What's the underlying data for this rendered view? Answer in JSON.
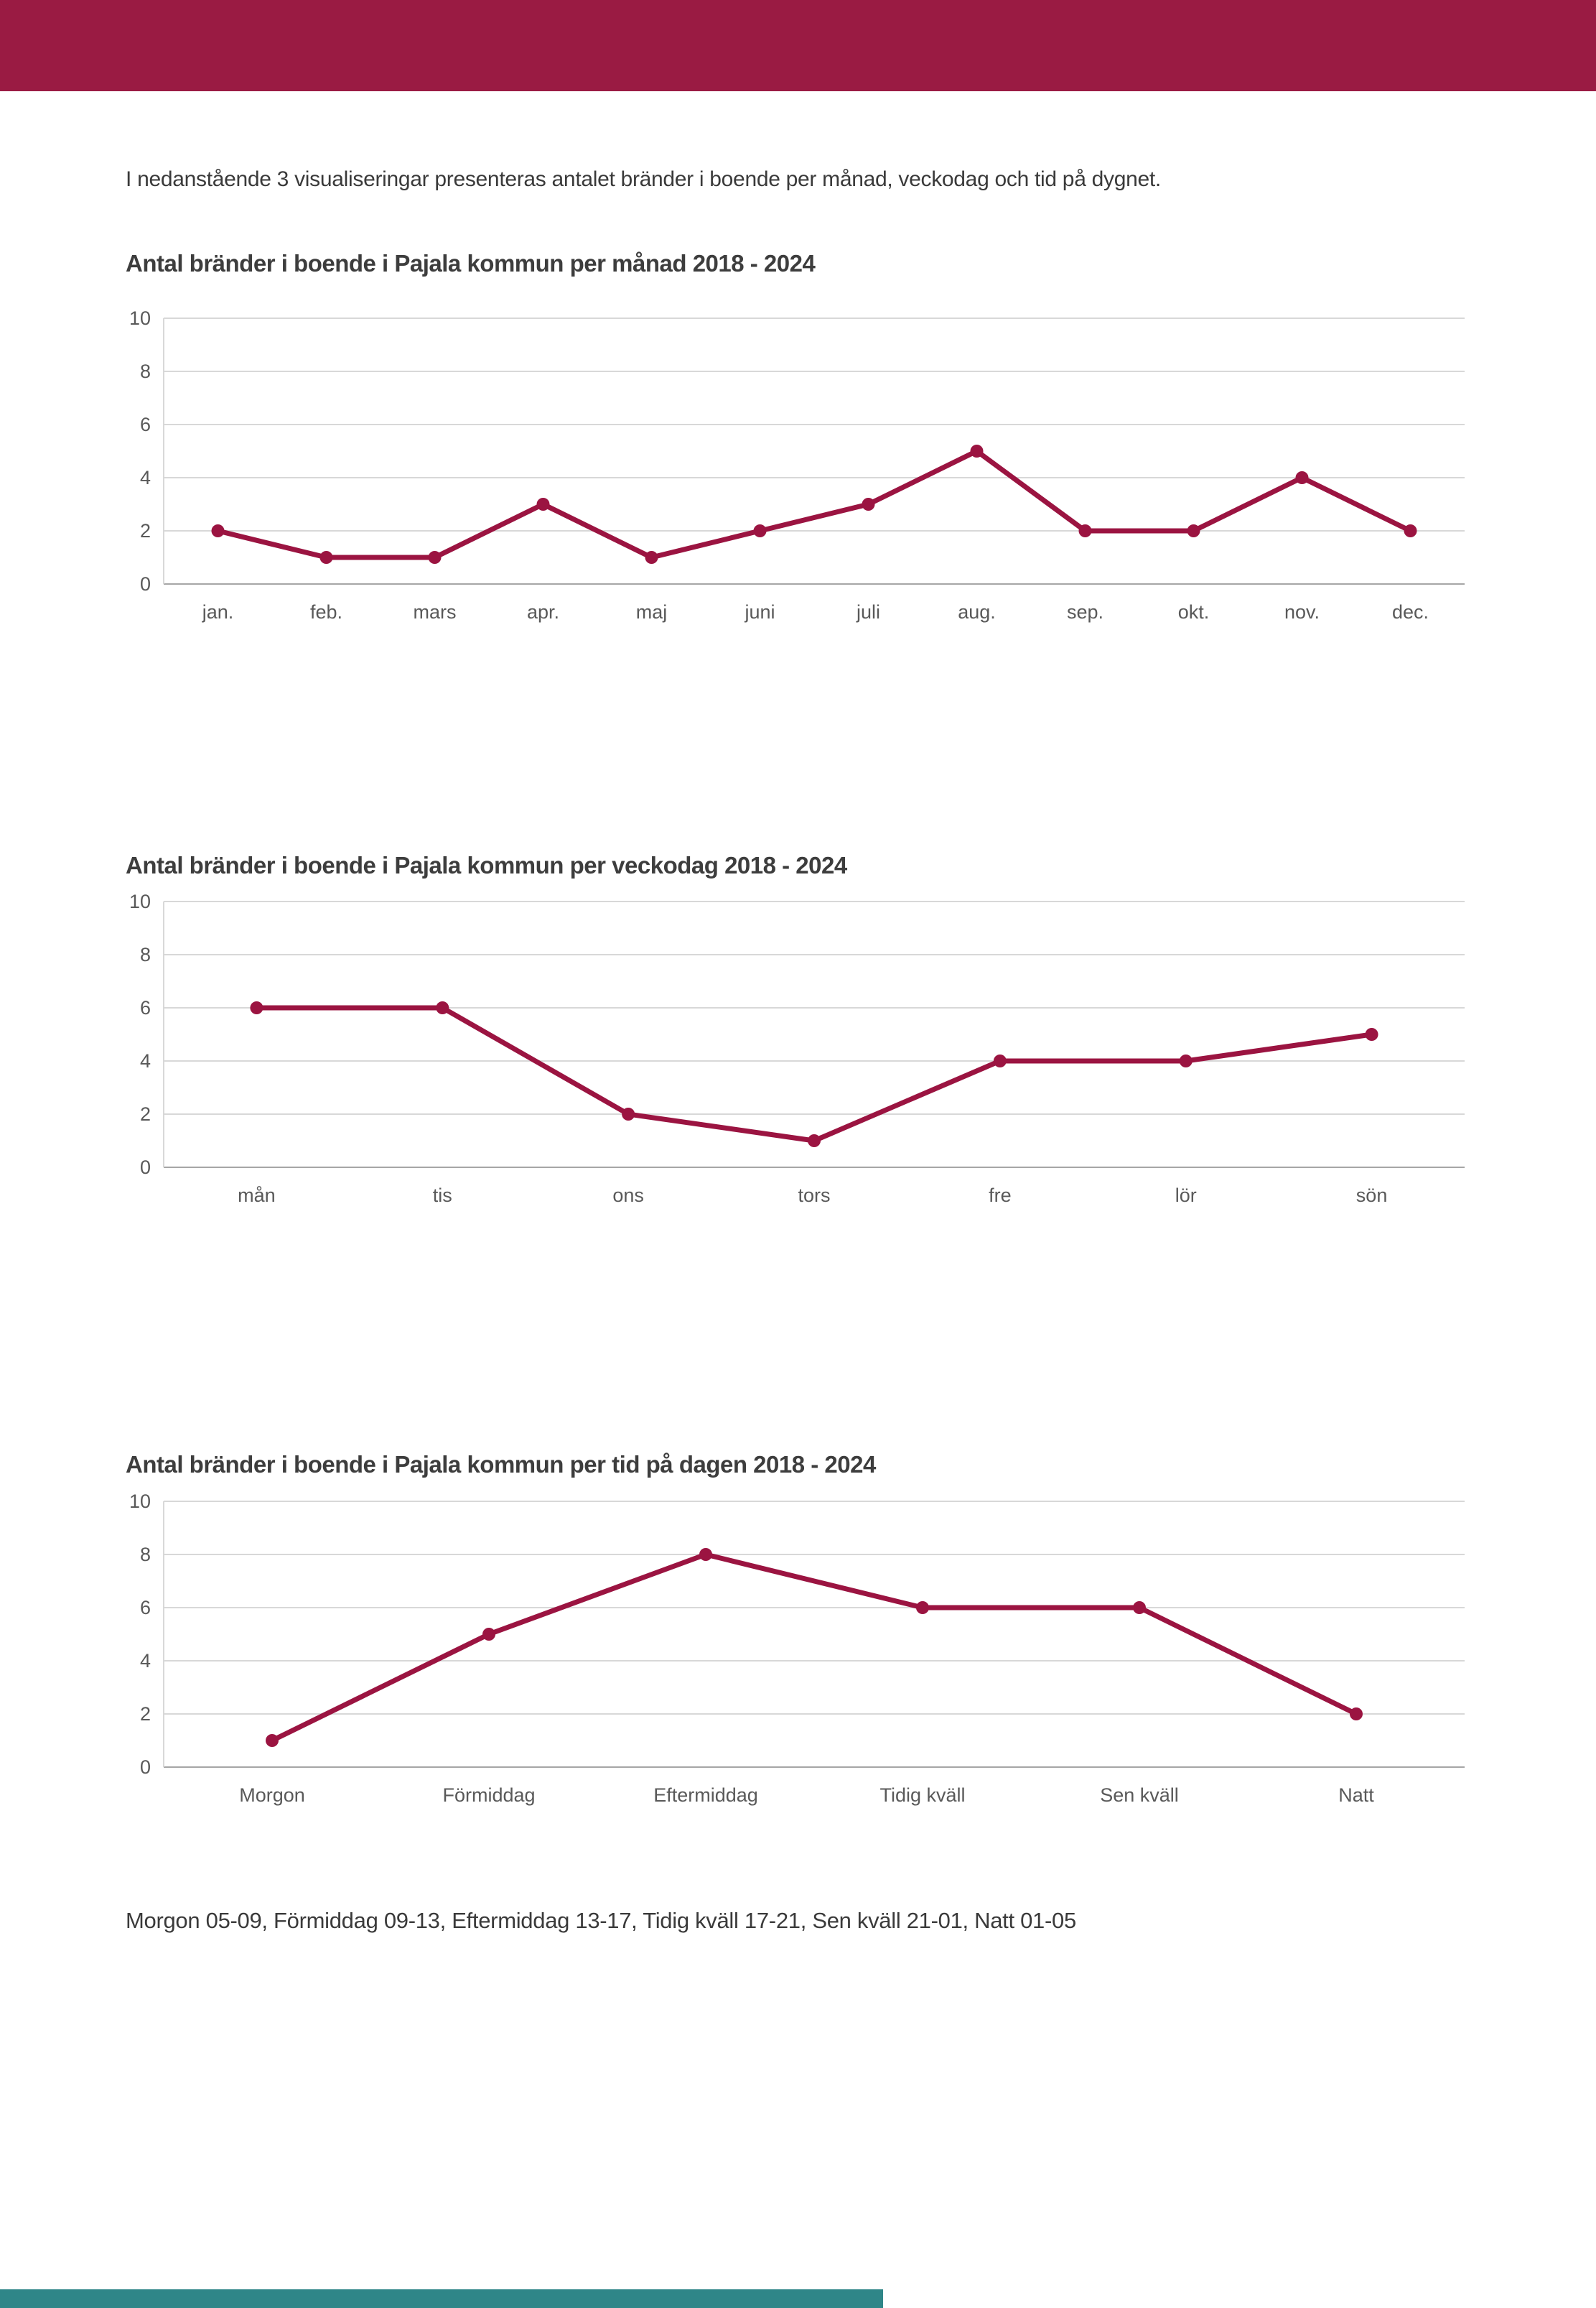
{
  "page": {
    "intro": "I nedanstående 3 visualiseringar presenteras antalet bränder i boende per månad, veckodag och tid på dygnet.",
    "footnote": "Morgon 05-09, Förmiddag 09-13, Eftermiddag 13-17, Tidig kväll 17-21, Sen kväll 21-01, Natt 01-05",
    "accent_color": "#9A1B43",
    "bottom_bar_color": "#2F8688",
    "grid_color": "#D8D8D8",
    "axis_color": "#A6A6A6",
    "tick_text_color": "#595959"
  },
  "chart_data": [
    {
      "type": "line",
      "title": "Antal bränder i boende i Pajala kommun per månad 2018 - 2024",
      "categories": [
        "jan.",
        "feb.",
        "mars",
        "apr.",
        "maj",
        "juni",
        "juli",
        "aug.",
        "sep.",
        "okt.",
        "nov.",
        "dec."
      ],
      "values": [
        2,
        1,
        1,
        3,
        1,
        2,
        3,
        5,
        2,
        2,
        4,
        2
      ],
      "xlabel": "",
      "ylabel": "",
      "ylim": [
        0,
        10
      ],
      "yticks": [
        0,
        2,
        4,
        6,
        8,
        10
      ],
      "grid": true,
      "legend": "none",
      "line_color": "#9B1441"
    },
    {
      "type": "line",
      "title": "Antal bränder i boende i Pajala kommun per veckodag 2018 - 2024",
      "categories": [
        "mån",
        "tis",
        "ons",
        "tors",
        "fre",
        "lör",
        "sön"
      ],
      "values": [
        6,
        6,
        2,
        1,
        4,
        4,
        5
      ],
      "xlabel": "",
      "ylabel": "",
      "ylim": [
        0,
        10
      ],
      "yticks": [
        0,
        2,
        4,
        6,
        8,
        10
      ],
      "grid": true,
      "legend": "none",
      "line_color": "#9B1441"
    },
    {
      "type": "line",
      "title": "Antal bränder i boende i Pajala kommun per tid på dagen 2018 - 2024",
      "categories": [
        "Morgon",
        "Förmiddag",
        "Eftermiddag",
        "Tidig kväll",
        "Sen kväll",
        "Natt"
      ],
      "values": [
        1,
        5,
        8,
        6,
        6,
        2
      ],
      "xlabel": "",
      "ylabel": "",
      "ylim": [
        0,
        10
      ],
      "yticks": [
        0,
        2,
        4,
        6,
        8,
        10
      ],
      "grid": true,
      "legend": "none",
      "line_color": "#9B1441"
    }
  ]
}
